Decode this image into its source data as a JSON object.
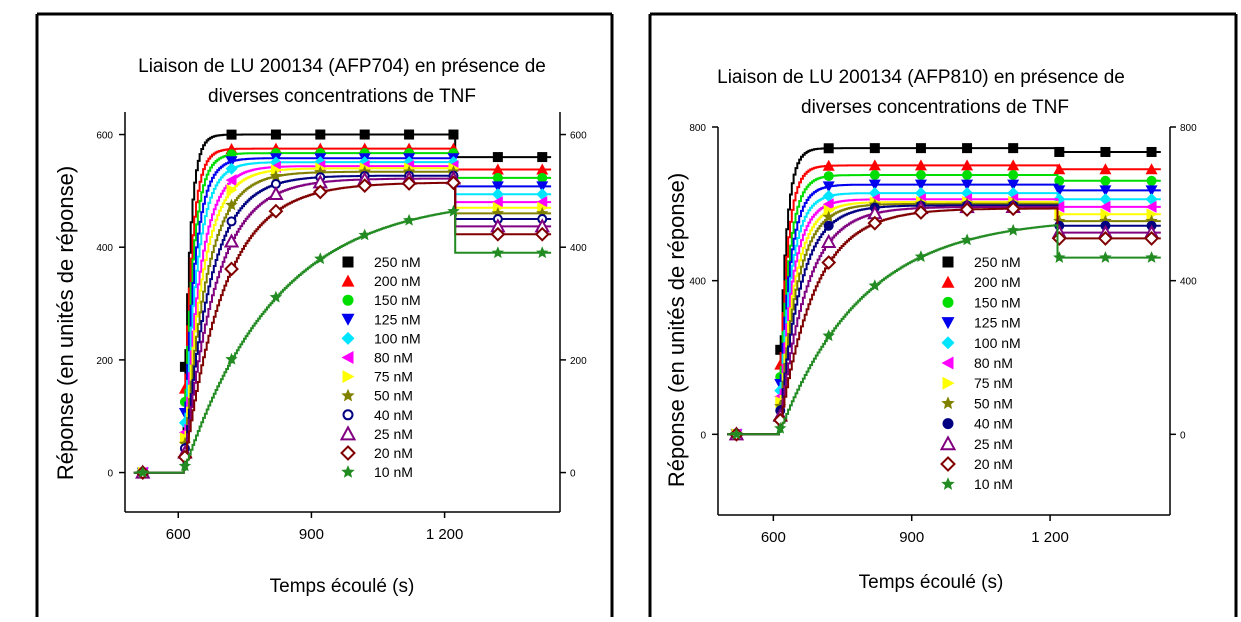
{
  "chart_data": [
    {
      "type": "line",
      "title": "Liaison de LU 200134 (AFP704) en présence de diverses concentrations de TNF",
      "title_lines": [
        "Liaison de LU 200134 (AFP704) en présence de",
        "diverses concentrations de TNF"
      ],
      "xlabel": "Temps écoulé (s)",
      "ylabel": "Réponse (en unités de réponse)",
      "xlim": [
        480,
        1460
      ],
      "ylim": [
        -70,
        640
      ],
      "x_ticks": [
        600,
        900,
        1200
      ],
      "x_tick_labels": [
        "600",
        "900",
        "1 200"
      ],
      "y_ticks": [
        0,
        200,
        400,
        600
      ],
      "y_tick_labels": [
        "0",
        "200",
        "400",
        "600"
      ],
      "right_axis_tick_labels": [
        "0",
        "200",
        "400",
        "600"
      ],
      "legend_position": "lower-right",
      "inject_x": 610,
      "stop_x": 1220,
      "series": [
        {
          "name": "250 nM",
          "color": "#000000",
          "marker": "square-filled",
          "plateau": 600,
          "k": 0.075,
          "dissoc": 560
        },
        {
          "name": "200 nM",
          "color": "#ff0000",
          "marker": "triangle-up-filled",
          "plateau": 575,
          "k": 0.06,
          "dissoc": 538
        },
        {
          "name": "150 nM",
          "color": "#00dd00",
          "marker": "circle-filled",
          "plateau": 567,
          "k": 0.05,
          "dissoc": 523
        },
        {
          "name": "125 nM",
          "color": "#0000ee",
          "marker": "triangle-down-filled",
          "plateau": 558,
          "k": 0.042,
          "dissoc": 508
        },
        {
          "name": "100 nM",
          "color": "#00e5ff",
          "marker": "diamond-filled",
          "plateau": 551,
          "k": 0.035,
          "dissoc": 494
        },
        {
          "name": "80 nM",
          "color": "#ff00ff",
          "marker": "triangle-left-filled",
          "plateau": 544,
          "k": 0.028,
          "dissoc": 480
        },
        {
          "name": "75 nM",
          "color": "#ffff00",
          "marker": "triangle-right-filled",
          "plateau": 540,
          "k": 0.024,
          "dissoc": 470
        },
        {
          "name": "50 nM",
          "color": "#808000",
          "marker": "star-filled",
          "plateau": 534,
          "k": 0.02,
          "dissoc": 460
        },
        {
          "name": "40 nM",
          "color": "#000080",
          "marker": "circle-open",
          "plateau": 527,
          "k": 0.017,
          "dissoc": 450
        },
        {
          "name": "25 nM",
          "color": "#800080",
          "marker": "triangle-up-open",
          "plateau": 522,
          "k": 0.014,
          "dissoc": 437
        },
        {
          "name": "20 nM",
          "color": "#800000",
          "marker": "diamond-open",
          "plateau": 515,
          "k": 0.011,
          "dissoc": 423
        },
        {
          "name": "10 nM",
          "color": "#228b22",
          "marker": "star-filled",
          "plateau": 490,
          "k": 0.0048,
          "dissoc": 390
        }
      ]
    },
    {
      "type": "line",
      "title": "Liaison de LU 200134 (AFP810) en présence de diverses concentrations de TNF",
      "title_lines": [
        "Liaison de LU 200134 (AFP810) en présence de",
        "diverses concentrations de TNF"
      ],
      "xlabel": "Temps écoulé (s)",
      "ylabel": "Réponse (en unités de réponse)",
      "xlim": [
        480,
        1460
      ],
      "ylim": [
        -210,
        800
      ],
      "x_ticks": [
        600,
        900,
        1200
      ],
      "x_tick_labels": [
        "600",
        "900",
        "1 200"
      ],
      "y_ticks": [
        0,
        400,
        800
      ],
      "y_tick_labels": [
        "0",
        "400",
        "800"
      ],
      "right_axis_tick_labels": [
        "0",
        "400",
        "800"
      ],
      "legend_position": "lower-right",
      "inject_x": 610,
      "stop_x": 1215,
      "series": [
        {
          "name": "250 nM",
          "color": "#000000",
          "marker": "square-filled",
          "plateau": 745,
          "k": 0.07,
          "dissoc": 735
        },
        {
          "name": "200 nM",
          "color": "#ff0000",
          "marker": "triangle-up-filled",
          "plateau": 700,
          "k": 0.06,
          "dissoc": 690
        },
        {
          "name": "150 nM",
          "color": "#00dd00",
          "marker": "circle-filled",
          "plateau": 675,
          "k": 0.05,
          "dissoc": 660
        },
        {
          "name": "125 nM",
          "color": "#0000ee",
          "marker": "triangle-down-filled",
          "plateau": 650,
          "k": 0.045,
          "dissoc": 635
        },
        {
          "name": "100 nM",
          "color": "#00e5ff",
          "marker": "diamond-filled",
          "plateau": 628,
          "k": 0.04,
          "dissoc": 612
        },
        {
          "name": "80 nM",
          "color": "#ff00ff",
          "marker": "triangle-left-filled",
          "plateau": 612,
          "k": 0.035,
          "dissoc": 592
        },
        {
          "name": "75 nM",
          "color": "#ffff00",
          "marker": "triangle-right-filled",
          "plateau": 605,
          "k": 0.03,
          "dissoc": 573
        },
        {
          "name": "50 nM",
          "color": "#808000",
          "marker": "star-filled",
          "plateau": 600,
          "k": 0.026,
          "dissoc": 555
        },
        {
          "name": "40 nM",
          "color": "#000080",
          "marker": "circle-filled",
          "plateau": 596,
          "k": 0.022,
          "dissoc": 543
        },
        {
          "name": "25 nM",
          "color": "#800080",
          "marker": "triangle-up-open",
          "plateau": 592,
          "k": 0.017,
          "dissoc": 525
        },
        {
          "name": "20 nM",
          "color": "#800000",
          "marker": "diamond-open",
          "plateau": 588,
          "k": 0.013,
          "dissoc": 510
        },
        {
          "name": "10 nM",
          "color": "#228b22",
          "marker": "star-filled",
          "plateau": 565,
          "k": 0.0055,
          "dissoc": 460
        }
      ]
    }
  ]
}
